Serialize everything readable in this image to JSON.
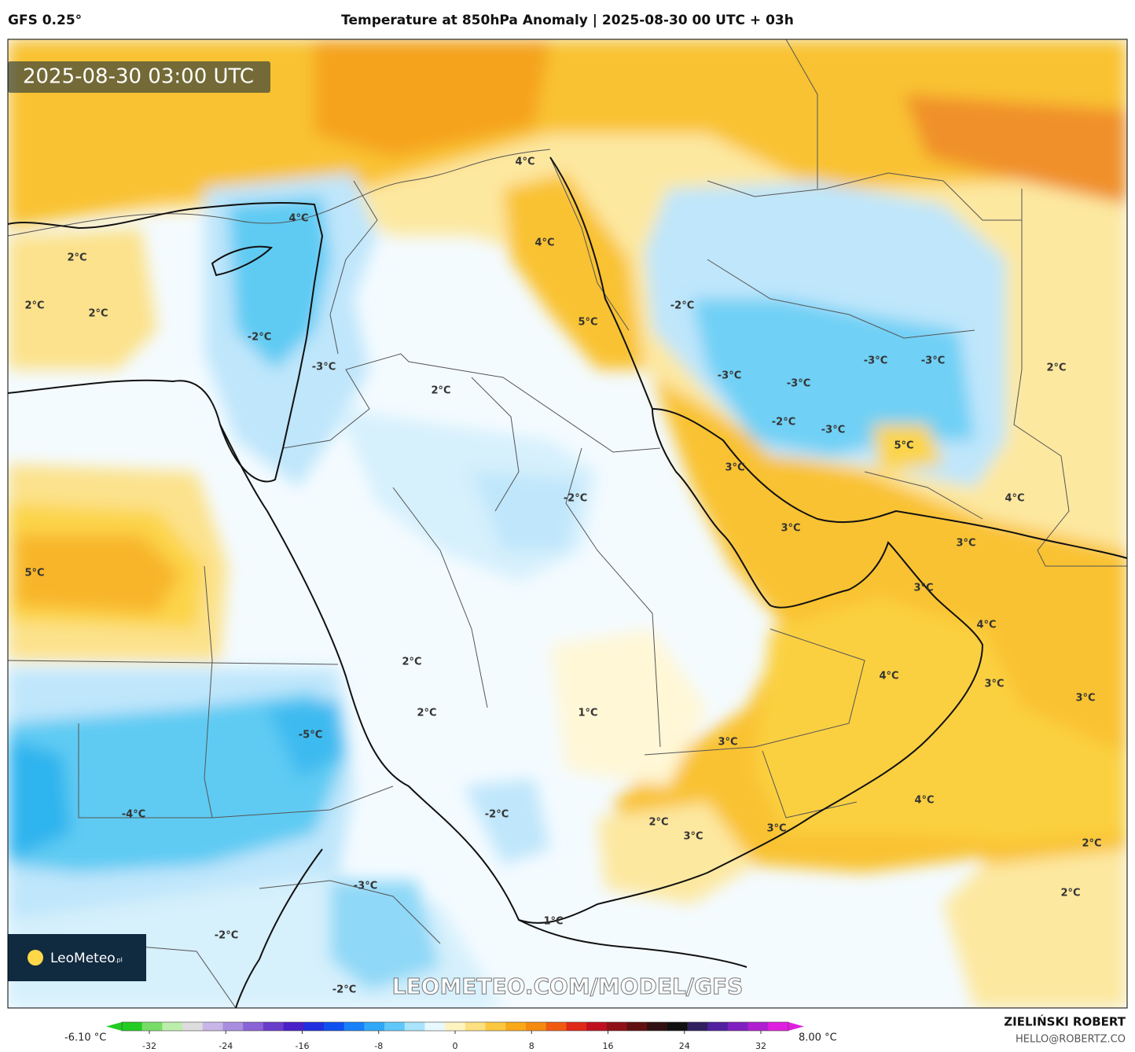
{
  "header": {
    "model": "GFS 0.25°",
    "title": "Temperature at 850hPa Anomaly | 2025-08-30 00 UTC + 03h"
  },
  "map": {
    "valid_time": "2025-08-30 03:00 UTC",
    "watermark": "LEOMETEO.COM/MODEL/GFS",
    "logo": {
      "name": "LeoMeteo",
      "suffix": ".pl"
    },
    "contour_labels": [
      "4°C",
      "2°C",
      "2°C",
      "2°C",
      "-2°C",
      "-3°C",
      "4°C",
      "4°C",
      "5°C",
      "2°C",
      "-2°C",
      "-3°C",
      "-3°C",
      "-3°C",
      "-3°C",
      "-2°C",
      "-3°C",
      "5°C",
      "2°C",
      "3°C",
      "-2°C",
      "4°C",
      "3°C",
      "3°C",
      "5°C",
      "3°C",
      "4°C",
      "2°C",
      "4°C",
      "3°C",
      "3°C",
      "1°C",
      "2°C",
      "-5°C",
      "3°C",
      "4°C",
      "-4°C",
      "-2°C",
      "2°C",
      "3°C",
      "3°C",
      "2°C",
      "-3°C",
      "2°C",
      "1°C",
      "-2°C",
      "-2°C"
    ]
  },
  "colorbar": {
    "min_label": "-6.10 °C",
    "max_label": "8.00 °C",
    "ticks": [
      -32,
      -24,
      -16,
      -8,
      0,
      8,
      16,
      24,
      32
    ]
  },
  "credits": {
    "author": "ZIELIŃSKI ROBERT",
    "email": "HELLO@ROBERTZ.CO"
  }
}
